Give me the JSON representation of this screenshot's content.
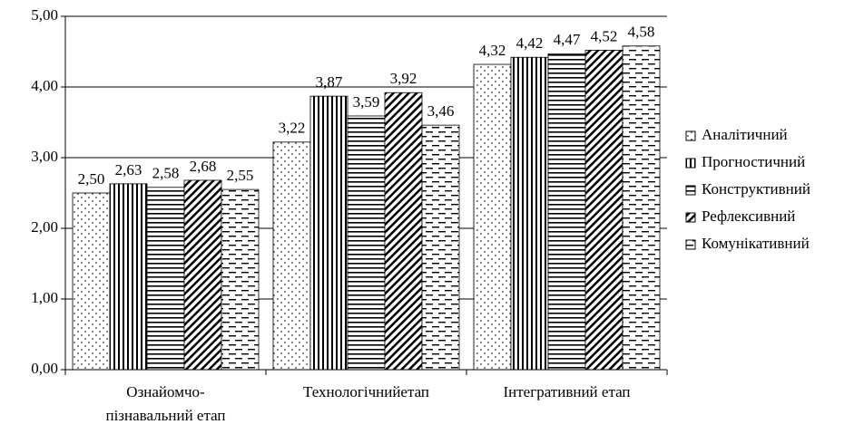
{
  "chart_data": {
    "type": "bar",
    "categories": [
      "Ознайомчо-\nпізнавальний етап",
      "Технологічнийетап",
      "Інтегративний етап"
    ],
    "series": [
      {
        "name": "Аналітичний",
        "color": "#000000",
        "pattern": "dots",
        "values": [
          2.5,
          3.22,
          4.32
        ],
        "value_labels": [
          "2,50",
          "3,22",
          "4,32"
        ]
      },
      {
        "name": "Прогностичний",
        "color": "#000000",
        "pattern": "vertical",
        "values": [
          2.63,
          3.87,
          4.42
        ],
        "value_labels": [
          "2,63",
          "3,87",
          "4,42"
        ]
      },
      {
        "name": "Конструктивний",
        "color": "#000000",
        "pattern": "horizontal",
        "values": [
          2.58,
          3.59,
          4.47
        ],
        "value_labels": [
          "2,58",
          "3,59",
          "4,47"
        ]
      },
      {
        "name": "Рефлексивний",
        "color": "#000000",
        "pattern": "diagonal",
        "values": [
          2.68,
          3.92,
          4.52
        ],
        "value_labels": [
          "2,68",
          "3,92",
          "4,52"
        ]
      },
      {
        "name": "Комунікативний",
        "color": "#000000",
        "pattern": "dashed",
        "values": [
          2.55,
          3.46,
          4.58
        ],
        "value_labels": [
          "2,55",
          "3,46",
          "4,58"
        ]
      }
    ],
    "ylim": [
      0,
      5
    ],
    "yticks": [
      {
        "value": 0,
        "label": "0,00"
      },
      {
        "value": 1,
        "label": "1,00"
      },
      {
        "value": 2,
        "label": "2,00"
      },
      {
        "value": 3,
        "label": "3,00"
      },
      {
        "value": 4,
        "label": "4,00"
      },
      {
        "value": 5,
        "label": "5,00"
      }
    ],
    "grid": true,
    "legend": "right"
  }
}
